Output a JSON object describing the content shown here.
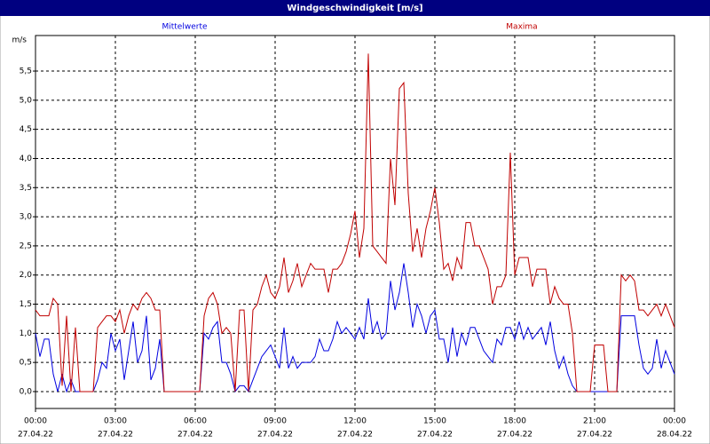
{
  "chart_data": {
    "type": "line",
    "title": "Windgeschwindigkeit [m/s]",
    "ylabel": "m/s",
    "x": [
      0,
      10,
      20,
      30,
      40,
      50,
      60,
      70,
      80,
      90,
      100,
      110,
      120,
      130,
      140,
      150,
      160,
      170,
      180,
      190,
      200,
      210,
      220,
      230,
      240,
      250,
      260,
      270,
      280,
      290,
      300,
      310,
      320,
      330,
      340,
      350,
      360,
      370,
      380,
      390,
      400,
      410,
      420,
      430,
      440,
      450,
      460,
      470,
      480,
      490,
      500,
      510,
      520,
      530,
      540,
      550,
      560,
      570,
      580,
      590,
      600,
      610,
      620,
      630,
      640,
      650,
      660,
      670,
      680,
      690,
      700,
      710,
      720,
      730,
      740,
      750,
      760,
      770,
      780,
      790,
      800,
      810,
      820,
      830,
      840,
      850,
      860,
      870,
      880,
      890,
      900,
      910,
      920,
      930,
      940,
      950,
      960,
      970,
      980,
      990,
      1000,
      1010,
      1020,
      1030,
      1040,
      1050,
      1060,
      1070,
      1080,
      1090,
      1100,
      1110,
      1120,
      1130,
      1140,
      1150,
      1160,
      1170,
      1180,
      1190,
      1200,
      1210,
      1220,
      1230,
      1240,
      1250,
      1260,
      1270,
      1280,
      1290,
      1300,
      1310,
      1320,
      1330,
      1340,
      1350,
      1360,
      1370,
      1380,
      1390,
      1400,
      1410,
      1420,
      1430,
      1440
    ],
    "series": [
      {
        "name": "Mittelwerte",
        "color": "#0000e0",
        "values": [
          1.0,
          0.6,
          0.9,
          0.9,
          0.3,
          0.0,
          0.3,
          0.0,
          0.2,
          0,
          0,
          0,
          0,
          0,
          0.2,
          0.5,
          0.4,
          1.0,
          0.7,
          0.9,
          0.2,
          0.7,
          1.2,
          0.5,
          0.7,
          1.3,
          0.2,
          0.4,
          0.9,
          0,
          0,
          0,
          0,
          0,
          0,
          0,
          0,
          0,
          1.0,
          0.9,
          1.1,
          1.2,
          0.5,
          0.5,
          0.3,
          0,
          0.1,
          0.1,
          0,
          0.2,
          0.4,
          0.6,
          0.7,
          0.8,
          0.6,
          0.4,
          1.1,
          0.4,
          0.6,
          0.4,
          0.5,
          0.5,
          0.5,
          0.6,
          0.9,
          0.7,
          0.7,
          0.9,
          1.2,
          1.0,
          1.1,
          1.0,
          0.9,
          1.1,
          0.9,
          1.6,
          1.0,
          1.2,
          0.9,
          1.0,
          1.9,
          1.4,
          1.7,
          2.2,
          1.7,
          1.1,
          1.5,
          1.3,
          1.0,
          1.3,
          1.4,
          0.9,
          0.9,
          0.5,
          1.1,
          0.6,
          1.0,
          0.8,
          1.1,
          1.1,
          0.9,
          0.7,
          0.6,
          0.5,
          0.9,
          0.8,
          1.1,
          1.1,
          0.9,
          1.2,
          0.9,
          1.1,
          0.9,
          1.0,
          1.1,
          0.8,
          1.2,
          0.7,
          0.4,
          0.6,
          0.3,
          0.1,
          0,
          0,
          0,
          0,
          0,
          0,
          0,
          0,
          0,
          0,
          1.3,
          1.3,
          1.3,
          1.3,
          0.8,
          0.4,
          0.3,
          0.4,
          0.9,
          0.4,
          0.7,
          0.5,
          0.3
        ]
      },
      {
        "name": "Maxima",
        "color": "#c00000",
        "values": [
          1.4,
          1.3,
          1.3,
          1.3,
          1.6,
          1.5,
          0.1,
          1.3,
          0.0,
          1.1,
          0,
          0,
          0,
          0,
          1.1,
          1.2,
          1.3,
          1.3,
          1.2,
          1.4,
          1.0,
          1.3,
          1.5,
          1.4,
          1.6,
          1.7,
          1.6,
          1.4,
          1.4,
          0,
          0,
          0,
          0,
          0,
          0,
          0,
          0,
          0,
          1.3,
          1.6,
          1.7,
          1.5,
          1.0,
          1.1,
          1.0,
          0,
          1.4,
          1.4,
          0,
          1.4,
          1.5,
          1.8,
          2.0,
          1.7,
          1.6,
          1.8,
          2.3,
          1.7,
          1.9,
          2.2,
          1.8,
          2.0,
          2.2,
          2.1,
          2.1,
          2.1,
          1.7,
          2.1,
          2.1,
          2.2,
          2.4,
          2.7,
          3.1,
          2.3,
          2.8,
          5.8,
          2.5,
          2.4,
          2.3,
          2.2,
          4.0,
          3.2,
          5.2,
          5.3,
          3.4,
          2.4,
          2.8,
          2.3,
          2.8,
          3.1,
          3.5,
          2.9,
          2.1,
          2.2,
          1.9,
          2.3,
          2.1,
          2.9,
          2.9,
          2.5,
          2.5,
          2.3,
          2.1,
          1.5,
          1.8,
          1.8,
          2.0,
          4.1,
          2.0,
          2.3,
          2.3,
          2.3,
          1.8,
          2.1,
          2.1,
          2.1,
          1.5,
          1.8,
          1.6,
          1.5,
          1.5,
          1.0,
          0,
          0,
          0,
          0,
          0.8,
          0.8,
          0.8,
          0,
          0,
          0,
          2.0,
          1.9,
          2.0,
          1.9,
          1.4,
          1.4,
          1.3,
          1.4,
          1.5,
          1.3,
          1.5,
          1.3,
          1.1
        ]
      }
    ],
    "xlim": [
      0,
      1440
    ],
    "xticks": [
      {
        "value": 0,
        "label": "00:00",
        "date": "27.04.22"
      },
      {
        "value": 180,
        "label": "03:00",
        "date": "27.04.22"
      },
      {
        "value": 360,
        "label": "06:00",
        "date": "27.04.22"
      },
      {
        "value": 540,
        "label": "09:00",
        "date": "27.04.22"
      },
      {
        "value": 720,
        "label": "12:00",
        "date": "27.04.22"
      },
      {
        "value": 900,
        "label": "15:00",
        "date": "27.04.22"
      },
      {
        "value": 1080,
        "label": "18:00",
        "date": "27.04.22"
      },
      {
        "value": 1260,
        "label": "21:00",
        "date": "27.04.22"
      },
      {
        "value": 1440,
        "label": "00:00",
        "date": "28.04.22"
      }
    ],
    "ylim": [
      -0.29,
      6.11
    ],
    "yticks": [
      {
        "value": 0,
        "label": "0,0"
      },
      {
        "value": 0.5,
        "label": "0,5"
      },
      {
        "value": 1,
        "label": "1,0"
      },
      {
        "value": 1.5,
        "label": "1,5"
      },
      {
        "value": 2,
        "label": "2,0"
      },
      {
        "value": 2.5,
        "label": "2,5"
      },
      {
        "value": 3,
        "label": "3,0"
      },
      {
        "value": 3.5,
        "label": "3,5"
      },
      {
        "value": 4,
        "label": "4,0"
      },
      {
        "value": 4.5,
        "label": "4,5"
      },
      {
        "value": 5,
        "label": "5,0"
      },
      {
        "value": 5.5,
        "label": "5,5"
      }
    ],
    "grid": true
  }
}
